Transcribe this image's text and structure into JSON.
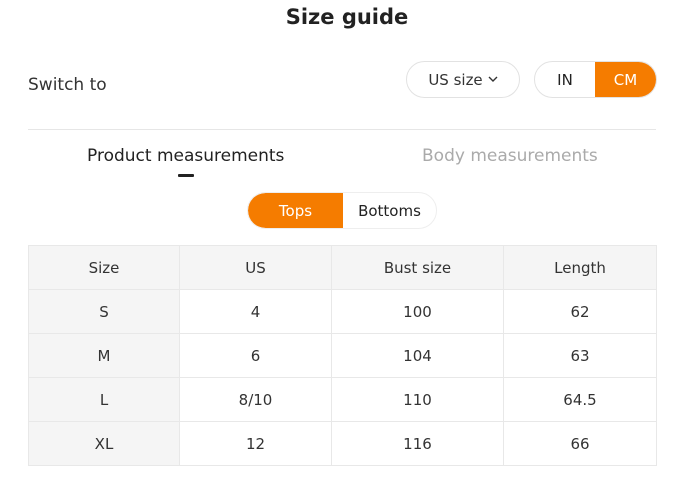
{
  "title": "Size guide",
  "switch_label": "Switch to",
  "size_system": {
    "selected": "US size",
    "icon": "chevron-down-icon"
  },
  "units": {
    "options": [
      "IN",
      "CM"
    ],
    "selected": "CM"
  },
  "tabs": [
    {
      "label": "Product measurements",
      "active": true
    },
    {
      "label": "Body measurements",
      "active": false
    }
  ],
  "categories": {
    "options": [
      "Tops",
      "Bottoms"
    ],
    "selected": "Tops"
  },
  "accent": "#f57c00",
  "table": {
    "headers": [
      "Size",
      "US",
      "Bust size",
      "Length"
    ],
    "rows": [
      [
        "S",
        "4",
        "100",
        "62"
      ],
      [
        "M",
        "6",
        "104",
        "63"
      ],
      [
        "L",
        "8/10",
        "110",
        "64.5"
      ],
      [
        "XL",
        "12",
        "116",
        "66"
      ]
    ]
  }
}
